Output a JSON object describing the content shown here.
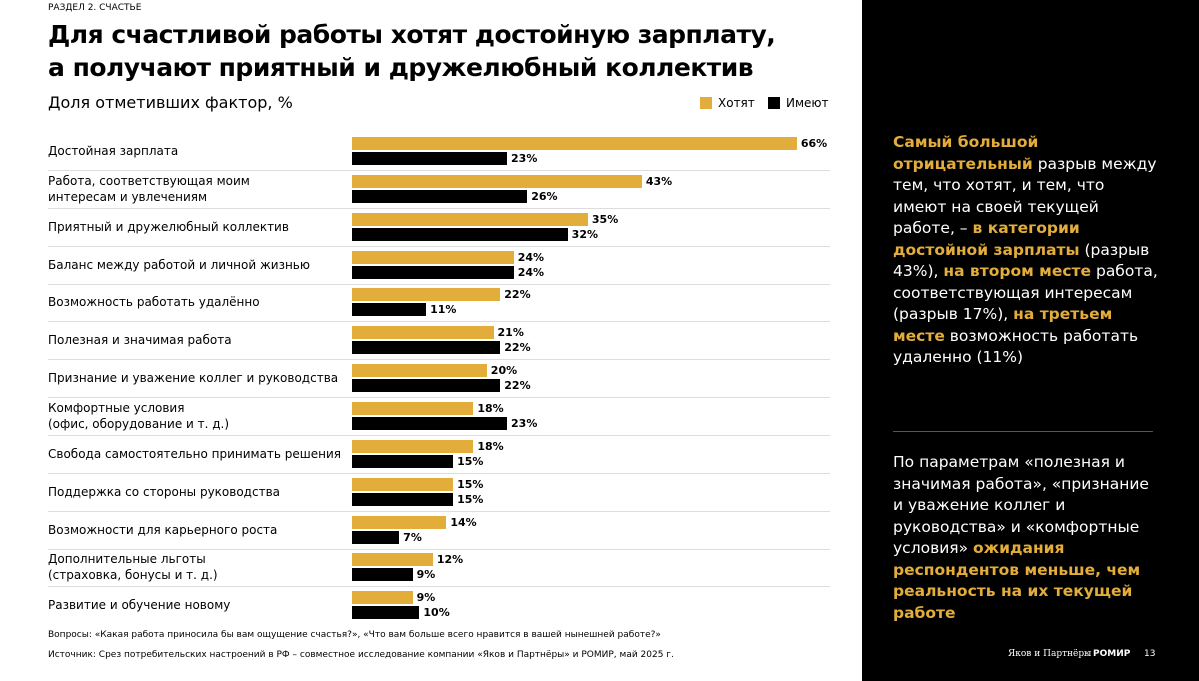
{
  "section": "РАЗДЕЛ 2. СЧАСТЬЕ",
  "chart_data": {
    "type": "hbar",
    "title": "Для счастливой работы хотят достойную зарплату,\nа получают приятный и дружелюбный коллектив",
    "subtitle": "Доля отметивших фактор, %",
    "categories": [
      "Достойная зарплата",
      "Работа, соответствующая моим\nинтересам и увлечениям",
      "Приятный и дружелюбный коллектив",
      "Баланс между работой и личной жизнью",
      "Возможность работать удалённо",
      "Полезная и значимая работа",
      "Признание и уважение коллег и руководства",
      "Комфортные условия\n(офис, оборудование и т. д.)",
      "Свобода самостоятельно принимать решения",
      "Поддержка со стороны руководства",
      "Возможности для карьерного роста",
      "Дополнительные льготы\n(страховка, бонусы и т. д.)",
      "Развитие и обучение новому"
    ],
    "series": [
      {
        "name": "Хотят",
        "color": "#e3ad3b",
        "values": [
          66,
          43,
          35,
          24,
          22,
          21,
          20,
          18,
          18,
          15,
          14,
          12,
          9
        ],
        "value_labels": [
          "66%",
          "43%",
          "35%",
          "24%",
          "22%",
          "21%",
          "20%",
          "18%",
          "18%",
          "15%",
          "14%",
          "12%",
          "9%"
        ]
      },
      {
        "name": "Имеют",
        "color": "#000000",
        "values": [
          23,
          26,
          32,
          24,
          11,
          22,
          22,
          23,
          15,
          15,
          7,
          9,
          10
        ],
        "value_labels": [
          "23%",
          "26%",
          "32%",
          "24%",
          "11%",
          "22%",
          "22%",
          "23%",
          "15%",
          "15%",
          "7%",
          "9%",
          "10%"
        ]
      }
    ],
    "legend": "top-right"
  },
  "notes": [
    "Вопросы: «Какая работа приносила бы вам ощущение счастья?», «Что вам больше всего нравится в вашей нынешней работе?»",
    "Источник: Срез потребительских настроений в РФ – совместное исследование компании «Яков и Партнёры» и РОМИР, май 2025 г."
  ],
  "sidebar": [
    [
      {
        "text": "Самый большой отрицательный",
        "highlight": true
      },
      {
        "text": " разрыв между тем, что хотят, и тем, что имеют на своей текущей работе, – ",
        "highlight": false
      },
      {
        "text": "в категории достойной зарплаты",
        "highlight": true
      },
      {
        "text": " (разрыв 43%), ",
        "highlight": false
      },
      {
        "text": "на втором месте",
        "highlight": true
      },
      {
        "text": " работа, соответствующая интересам (разрыв 17%), ",
        "highlight": false
      },
      {
        "text": "на третьем месте",
        "highlight": true
      },
      {
        "text": " возможность работать удаленно (11%)",
        "highlight": false
      }
    ],
    [
      {
        "text": "По параметрам «полезная и значимая работа», «признание и уважение коллег и руководства» и «комфортные условия» ",
        "highlight": false
      },
      {
        "text": "ожидания респондентов меньше, чем реальность на их текущей работе",
        "highlight": true
      }
    ]
  ],
  "footer": {
    "brand": "Яков и Партнёры",
    "separator": "×",
    "partner": "РОМИР",
    "page": "13"
  }
}
